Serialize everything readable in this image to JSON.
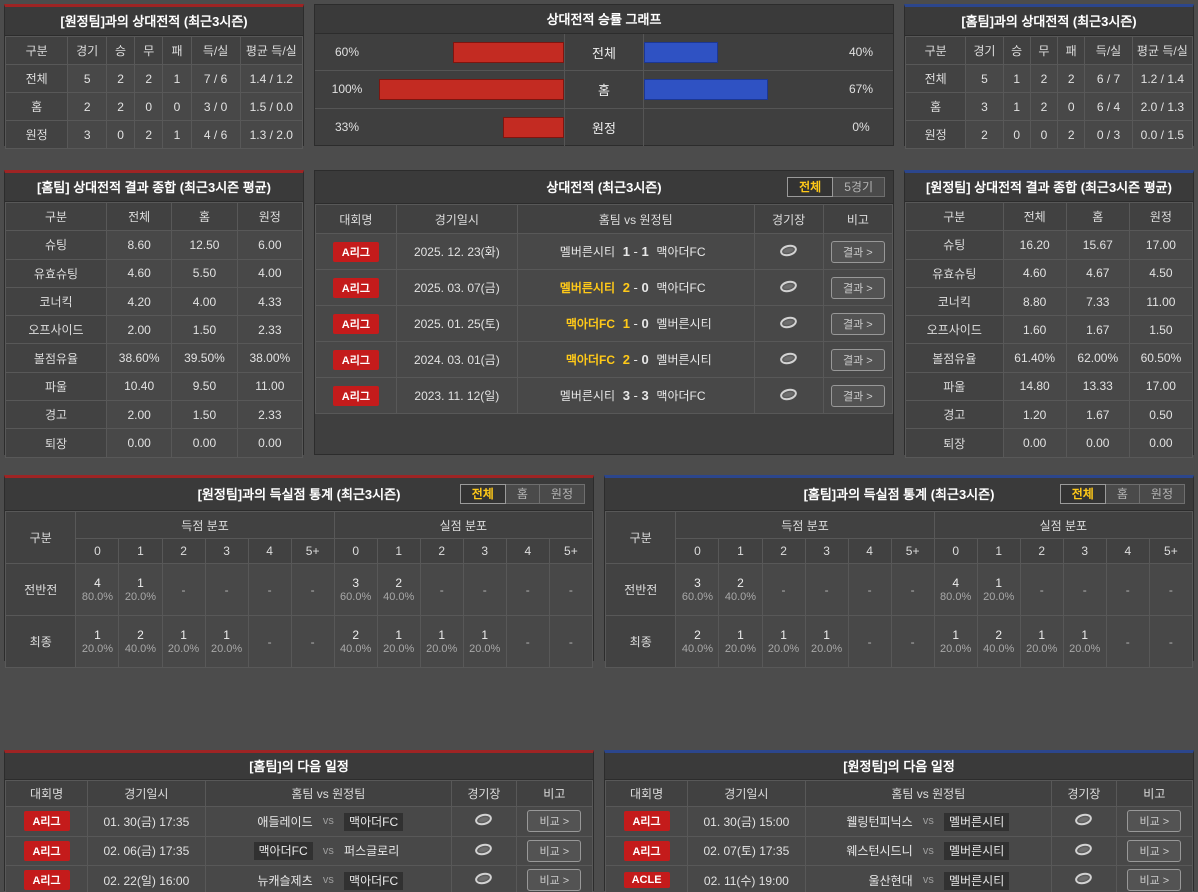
{
  "accent": {
    "red": "#9e2424",
    "blue": "#2c468c",
    "badge_red": "#c41b1b",
    "yellow": "#ffc918",
    "bar_red": "#c32b22",
    "bar_blue": "#2f52c3"
  },
  "h2h_away": {
    "title": "[원정팀]과의 상대전적 (최근3시즌)",
    "headers": [
      "구분",
      "경기",
      "승",
      "무",
      "패",
      "득/실",
      "평균 득/실"
    ],
    "rows": [
      [
        "전체",
        "5",
        "2",
        "2",
        "1",
        "7 / 6",
        "1.4 / 1.2"
      ],
      [
        "홈",
        "2",
        "2",
        "0",
        "0",
        "3 / 0",
        "1.5 / 0.0"
      ],
      [
        "원정",
        "3",
        "0",
        "2",
        "1",
        "4 / 6",
        "1.3 / 2.0"
      ]
    ]
  },
  "h2h_home": {
    "title": "[홈팀]과의 상대전적 (최근3시즌)",
    "headers": [
      "구분",
      "경기",
      "승",
      "무",
      "패",
      "득/실",
      "평균 득/실"
    ],
    "rows": [
      [
        "전체",
        "5",
        "1",
        "2",
        "2",
        "6 / 7",
        "1.2 / 1.4"
      ],
      [
        "홈",
        "3",
        "1",
        "2",
        "0",
        "6 / 4",
        "2.0 / 1.3"
      ],
      [
        "원정",
        "2",
        "0",
        "0",
        "2",
        "0 / 3",
        "0.0 / 1.5"
      ]
    ]
  },
  "chart_data": {
    "type": "bar",
    "title": "상대전적 승률 그래프",
    "categories": [
      "전체",
      "홈",
      "원정"
    ],
    "series": [
      {
        "name": "홈팀 승률(좌측, 적색)",
        "values": [
          60,
          100,
          33
        ]
      },
      {
        "name": "원정팀 승률(우측, 청색)",
        "values": [
          40,
          67,
          0
        ]
      }
    ],
    "left_labels": [
      "60%",
      "100%",
      "33%"
    ],
    "right_labels": [
      "40%",
      "67%",
      "0%"
    ],
    "xlim": [
      0,
      100
    ],
    "legend": "none",
    "grid": "off"
  },
  "home_summary": {
    "title": "[홈팀] 상대전적 결과 종합 (최근3시즌 평균)",
    "headers": [
      "구분",
      "전체",
      "홈",
      "원정"
    ],
    "rows": [
      [
        "슈팅",
        "8.60",
        "12.50",
        "6.00"
      ],
      [
        "유효슈팅",
        "4.60",
        "5.50",
        "4.00"
      ],
      [
        "코너킥",
        "4.20",
        "4.00",
        "4.33"
      ],
      [
        "오프사이드",
        "2.00",
        "1.50",
        "2.33"
      ],
      [
        "볼점유율",
        "38.60%",
        "39.50%",
        "38.00%"
      ],
      [
        "파울",
        "10.40",
        "9.50",
        "11.00"
      ],
      [
        "경고",
        "2.00",
        "1.50",
        "2.33"
      ],
      [
        "퇴장",
        "0.00",
        "0.00",
        "0.00"
      ]
    ]
  },
  "away_summary": {
    "title": "[원정팀] 상대전적 결과 종합 (최근3시즌 평균)",
    "headers": [
      "구분",
      "전체",
      "홈",
      "원정"
    ],
    "rows": [
      [
        "슈팅",
        "16.20",
        "15.67",
        "17.00"
      ],
      [
        "유효슈팅",
        "4.60",
        "4.67",
        "4.50"
      ],
      [
        "코너킥",
        "8.80",
        "7.33",
        "11.00"
      ],
      [
        "오프사이드",
        "1.60",
        "1.67",
        "1.50"
      ],
      [
        "볼점유율",
        "61.40%",
        "62.00%",
        "60.50%"
      ],
      [
        "파울",
        "14.80",
        "13.33",
        "17.00"
      ],
      [
        "경고",
        "1.20",
        "1.67",
        "0.50"
      ],
      [
        "퇴장",
        "0.00",
        "0.00",
        "0.00"
      ]
    ]
  },
  "matches": {
    "title": "상대전적 (최근3시즌)",
    "tabs": [
      {
        "label": "전체",
        "active": true
      },
      {
        "label": "5경기",
        "active": false
      }
    ],
    "headers": [
      "대회명",
      "경기일시",
      "홈팀 vs 원정팀",
      "경기장",
      "비고"
    ],
    "button_label": "결과 >",
    "rows": [
      {
        "league": "A리그",
        "date": "2025. 12. 23(화)",
        "home": "멜버른시티",
        "hs": "1",
        "as": "1",
        "away": "맥아더FC",
        "winner": ""
      },
      {
        "league": "A리그",
        "date": "2025. 03. 07(금)",
        "home": "멜버른시티",
        "hs": "2",
        "as": "0",
        "away": "맥아더FC",
        "winner": "home"
      },
      {
        "league": "A리그",
        "date": "2025. 01. 25(토)",
        "home": "맥아더FC",
        "hs": "1",
        "as": "0",
        "away": "멜버른시티",
        "winner": "home"
      },
      {
        "league": "A리그",
        "date": "2024. 03. 01(금)",
        "home": "맥아더FC",
        "hs": "2",
        "as": "0",
        "away": "멜버른시티",
        "winner": "home"
      },
      {
        "league": "A리그",
        "date": "2023. 11. 12(일)",
        "home": "멜버른시티",
        "hs": "3",
        "as": "3",
        "away": "맥아더FC",
        "winner": ""
      }
    ]
  },
  "goal_stats_away": {
    "title": "[원정팀]과의 득실점 통계 (최근3시즌)",
    "tabs": [
      {
        "label": "전체",
        "active": true
      },
      {
        "label": "홈",
        "active": false
      },
      {
        "label": "원정",
        "active": false
      }
    ],
    "corner": "구분",
    "group1": "득점 분포",
    "group2": "실점 분포",
    "cols": [
      "0",
      "1",
      "2",
      "3",
      "4",
      "5+"
    ],
    "rows": [
      {
        "label": "전반전",
        "score": [
          [
            "4",
            "80.0%"
          ],
          [
            "1",
            "20.0%"
          ],
          null,
          null,
          null,
          null
        ],
        "concede": [
          [
            "3",
            "60.0%"
          ],
          [
            "2",
            "40.0%"
          ],
          null,
          null,
          null,
          null
        ]
      },
      {
        "label": "최종",
        "score": [
          [
            "1",
            "20.0%"
          ],
          [
            "2",
            "40.0%"
          ],
          [
            "1",
            "20.0%"
          ],
          [
            "1",
            "20.0%"
          ],
          null,
          null
        ],
        "concede": [
          [
            "2",
            "40.0%"
          ],
          [
            "1",
            "20.0%"
          ],
          [
            "1",
            "20.0%"
          ],
          [
            "1",
            "20.0%"
          ],
          null,
          null
        ]
      }
    ]
  },
  "goal_stats_home": {
    "title": "[홈팀]과의 득실점 통계 (최근3시즌)",
    "tabs": [
      {
        "label": "전체",
        "active": true
      },
      {
        "label": "홈",
        "active": false
      },
      {
        "label": "원정",
        "active": false
      }
    ],
    "corner": "구분",
    "group1": "득점 분포",
    "group2": "실점 분포",
    "cols": [
      "0",
      "1",
      "2",
      "3",
      "4",
      "5+"
    ],
    "rows": [
      {
        "label": "전반전",
        "score": [
          [
            "3",
            "60.0%"
          ],
          [
            "2",
            "40.0%"
          ],
          null,
          null,
          null,
          null
        ],
        "concede": [
          [
            "4",
            "80.0%"
          ],
          [
            "1",
            "20.0%"
          ],
          null,
          null,
          null,
          null
        ]
      },
      {
        "label": "최종",
        "score": [
          [
            "2",
            "40.0%"
          ],
          [
            "1",
            "20.0%"
          ],
          [
            "1",
            "20.0%"
          ],
          [
            "1",
            "20.0%"
          ],
          null,
          null
        ],
        "concede": [
          [
            "1",
            "20.0%"
          ],
          [
            "2",
            "40.0%"
          ],
          [
            "1",
            "20.0%"
          ],
          [
            "1",
            "20.0%"
          ],
          null,
          null
        ]
      }
    ]
  },
  "schedule_home": {
    "title": "[홈팀]의 다음 일정",
    "headers": [
      "대회명",
      "경기일시",
      "홈팀 vs 원정팀",
      "경기장",
      "비고"
    ],
    "vs_label": "vs",
    "button_label": "비교 >",
    "rows": [
      {
        "league": "A리그",
        "date": "01. 30(금) 17:35",
        "home": "애들레이드",
        "away": "맥아더FC",
        "hl": "away"
      },
      {
        "league": "A리그",
        "date": "02. 06(금) 17:35",
        "home": "맥아더FC",
        "away": "퍼스글로리",
        "hl": "home"
      },
      {
        "league": "A리그",
        "date": "02. 22(일) 16:00",
        "home": "뉴캐슬제츠",
        "away": "맥아더FC",
        "hl": "away"
      }
    ]
  },
  "schedule_away": {
    "title": "[원정팀]의 다음 일정",
    "headers": [
      "대회명",
      "경기일시",
      "홈팀 vs 원정팀",
      "경기장",
      "비고"
    ],
    "vs_label": "vs",
    "button_label": "비교 >",
    "rows": [
      {
        "league": "A리그",
        "date": "01. 30(금) 15:00",
        "home": "웰링턴피닉스",
        "away": "멜버른시티",
        "hl": "away"
      },
      {
        "league": "A리그",
        "date": "02. 07(토) 17:35",
        "home": "웨스턴시드니",
        "away": "멜버른시티",
        "hl": "away"
      },
      {
        "league": "ACLE",
        "date": "02. 11(수) 19:00",
        "home": "울산현대",
        "away": "멜버른시티",
        "hl": "away"
      }
    ]
  }
}
